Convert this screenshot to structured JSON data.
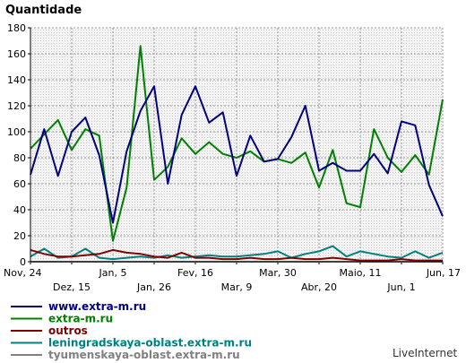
{
  "chart_data": {
    "type": "line",
    "title": "",
    "ylabel": "Quantidade",
    "xlabel": "",
    "ylim": [
      0,
      180
    ],
    "yticks": [
      0,
      20,
      40,
      60,
      80,
      100,
      120,
      140,
      160,
      180
    ],
    "grid": true,
    "legend_position": "bottom-left",
    "x_tick_labels": [
      {
        "i": 0,
        "label": "Nov, 24",
        "row": 1
      },
      {
        "i": 3,
        "label": "Dez, 15",
        "row": 2
      },
      {
        "i": 6,
        "label": "Jan, 5",
        "row": 1
      },
      {
        "i": 9,
        "label": "Jan, 26",
        "row": 2
      },
      {
        "i": 12,
        "label": "Fev, 16",
        "row": 1
      },
      {
        "i": 15,
        "label": "Mar, 9",
        "row": 2
      },
      {
        "i": 18,
        "label": "Mar, 30",
        "row": 1
      },
      {
        "i": 21,
        "label": "Abr, 20",
        "row": 2
      },
      {
        "i": 24,
        "label": "Maio, 11",
        "row": 1
      },
      {
        "i": 27,
        "label": "Jun, 1",
        "row": 2
      },
      {
        "i": 30,
        "label": "Jun, 17",
        "row": 1
      }
    ],
    "series": [
      {
        "name": "www.extra-m.ru",
        "color": "#000080",
        "values": [
          67,
          102,
          66,
          100,
          111,
          82,
          30,
          85,
          116,
          135,
          60,
          113,
          135,
          107,
          115,
          66,
          97,
          77,
          79,
          96,
          120,
          70,
          76,
          70,
          70,
          83,
          68,
          108,
          105,
          59,
          35
        ]
      },
      {
        "name": "extra-m.ru",
        "color": "#008000",
        "values": [
          87,
          98,
          109,
          86,
          102,
          97,
          16,
          57,
          166,
          63,
          73,
          95,
          83,
          92,
          83,
          80,
          85,
          77,
          79,
          76,
          84,
          57,
          86,
          45,
          42,
          102,
          80,
          69,
          82,
          67,
          125
        ]
      },
      {
        "name": "outros",
        "color": "#800000",
        "values": [
          9,
          6,
          4,
          4,
          5,
          6,
          9,
          7,
          6,
          4,
          3,
          7,
          3,
          3,
          2,
          2,
          3,
          2,
          2,
          3,
          2,
          2,
          3,
          2,
          1,
          1,
          1,
          2,
          1,
          1,
          1
        ]
      },
      {
        "name": "leningradskaya-oblast.extra-m.ru",
        "color": "#008080",
        "values": [
          4,
          10,
          3,
          4,
          10,
          3,
          2,
          3,
          4,
          3,
          5,
          3,
          4,
          5,
          4,
          4,
          5,
          6,
          8,
          3,
          6,
          8,
          12,
          4,
          8,
          6,
          4,
          3,
          8,
          3,
          7
        ]
      },
      {
        "name": "tyumenskaya-oblast.extra-m.ru",
        "color": "#808080",
        "values": [
          0,
          0,
          0,
          0,
          0,
          0,
          0,
          0,
          0,
          0,
          0,
          0,
          0,
          0,
          0,
          0,
          0,
          0,
          0,
          0,
          0,
          0,
          0,
          0,
          0,
          0,
          0,
          0,
          0,
          0,
          0
        ]
      }
    ]
  },
  "watermark": "LiveInternet"
}
